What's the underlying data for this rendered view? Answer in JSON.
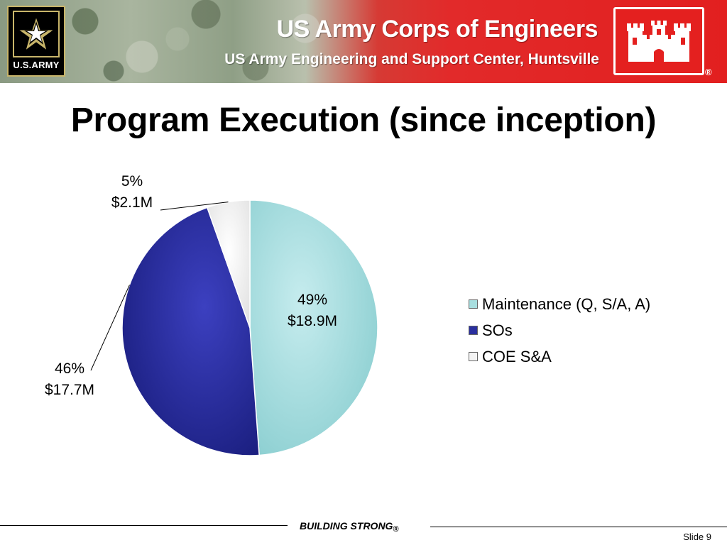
{
  "header": {
    "army_logo_text": "U.S.ARMY",
    "org_title": "US Army Corps of Engineers",
    "org_subtitle": "US Army Engineering and Support Center, Huntsville",
    "reg_mark": "®"
  },
  "slide": {
    "title": "Program Execution (since inception)"
  },
  "chart_data": {
    "type": "pie",
    "slices": [
      {
        "label": "Maintenance (Q, S/A, A)",
        "percent": 49,
        "value_label": "$18.9M",
        "value": 18.9,
        "color": "#a8dedf"
      },
      {
        "label": "SOs",
        "percent": 46,
        "value_label": "$17.7M",
        "value": 17.7,
        "color": "#2a2f9e"
      },
      {
        "label": "COE S&A",
        "percent": 5,
        "value_label": "$2.1M",
        "value": 2.1,
        "color": "#f4f4f4"
      }
    ],
    "data_labels": [
      "49%",
      "$18.9M",
      "46%",
      "$17.7M",
      "5%",
      "$2.1M"
    ],
    "legend": [
      "Maintenance (Q, S/A, A)",
      "SOs",
      "COE S&A"
    ],
    "legend_position": "right",
    "start_angle": "12 o'clock",
    "direction": "clockwise"
  },
  "footer": {
    "brand": "BUILDING STRONG",
    "brand_reg": "®",
    "slide_label": "Slide 9"
  }
}
